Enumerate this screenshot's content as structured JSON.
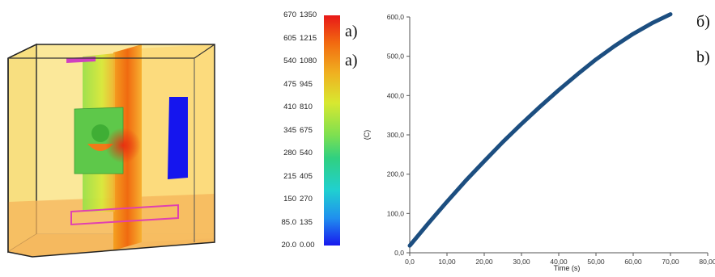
{
  "colorbar": {
    "scale_a": [
      "670",
      "605",
      "540",
      "475",
      "410",
      "345",
      "280",
      "215",
      "150",
      "85.0",
      "20.0"
    ],
    "scale_b": [
      "1350",
      "1215",
      "1080",
      "945",
      "810",
      "675",
      "540",
      "405",
      "270",
      "135",
      "0.00"
    ],
    "marker_1": "a)",
    "marker_2": "a)"
  },
  "plot_markers": {
    "marker_1": "б)",
    "marker_2": "b)"
  },
  "chart_data": {
    "type": "line",
    "xlabel": "Time (s)",
    "ylabel": "(C)",
    "xlim": [
      0,
      80
    ],
    "ylim": [
      0,
      600
    ],
    "x_ticks": [
      "0,0",
      "10,00",
      "20,00",
      "30,00",
      "40,00",
      "50,00",
      "60,00",
      "70,00",
      "80,00"
    ],
    "y_ticks": [
      "0,0",
      "100,0",
      "200,0",
      "300,0",
      "400,0",
      "500,0",
      "600,0"
    ],
    "grid": false,
    "line_color": "#1c4e80",
    "series": [
      {
        "x": [
          0,
          5,
          10,
          15,
          20,
          25,
          30,
          35,
          40,
          45,
          50,
          55,
          60,
          65,
          70
        ],
        "y": [
          18,
          75,
          130,
          183,
          233,
          282,
          328,
          372,
          414,
          454,
          492,
          526,
          557,
          584,
          607
        ]
      }
    ]
  }
}
